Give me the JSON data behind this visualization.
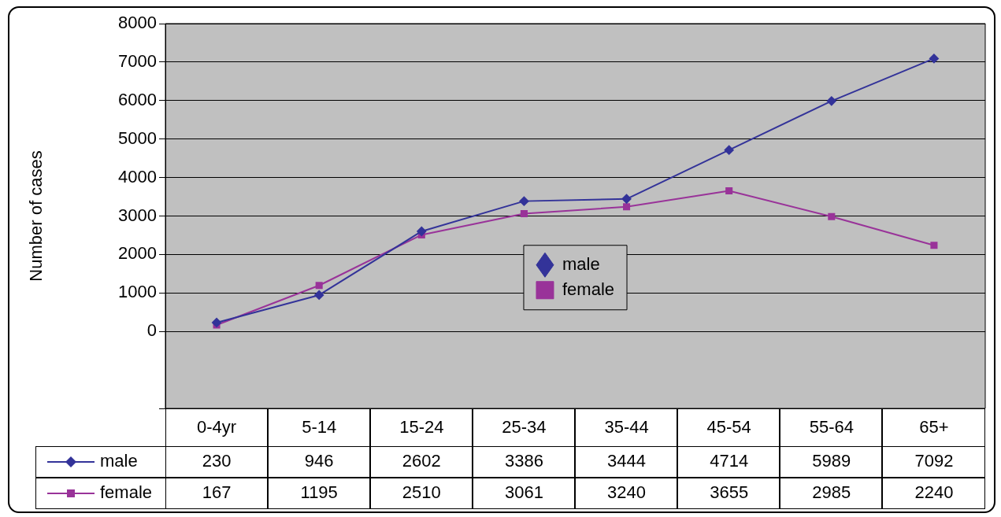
{
  "chart_data": {
    "type": "line",
    "ylabel": "Number of cases",
    "categories": [
      "0-4yr",
      "5-14",
      "15-24",
      "25-34",
      "35-44",
      "45-54",
      "55-64",
      "65+"
    ],
    "series": [
      {
        "name": "male",
        "color": "#333399",
        "marker": "diamond",
        "values": [
          230,
          946,
          2602,
          3386,
          3444,
          4714,
          5989,
          7092
        ]
      },
      {
        "name": "female",
        "color": "#993399",
        "marker": "square",
        "values": [
          167,
          1195,
          2510,
          3061,
          3240,
          3655,
          2985,
          2240
        ]
      }
    ],
    "ylim": [
      -2000,
      8000
    ],
    "yticks": [
      {
        "value": -2000,
        "label": null
      },
      0,
      1000,
      2000,
      3000,
      4000,
      5000,
      6000,
      7000,
      8000
    ],
    "grid": "y",
    "legend": "center",
    "data_labels": true
  }
}
